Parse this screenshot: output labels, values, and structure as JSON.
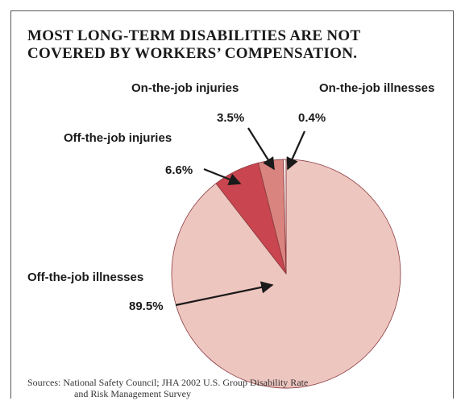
{
  "chart_data": {
    "type": "pie",
    "title": "MOST LONG-TERM DISABILITIES ARE NOT COVERED BY WORKERS' COMPENSATION.",
    "title_lines": [
      "MOST LONG-TERM DISABILITIES ARE NOT",
      "COVERED BY WORKERS’ COMPENSATION."
    ],
    "slices": [
      {
        "name": "Off-the-job illnesses",
        "value": 89.5,
        "label": "89.5%",
        "color": "#eec6c0"
      },
      {
        "name": "Off-the-job injuries",
        "value": 6.6,
        "label": "6.6%",
        "color": "#c9454f"
      },
      {
        "name": "On-the-job injuries",
        "value": 3.5,
        "label": "3.5%",
        "color": "#d9847f"
      },
      {
        "name": "On-the-job illnesses",
        "value": 0.4,
        "label": "0.4%",
        "color": "#f5ece8"
      }
    ],
    "source": {
      "line1": "Sources: National Safety Council; JHA 2002 U.S. Group Disability Rate",
      "line2": "and Risk Management Survey"
    }
  }
}
